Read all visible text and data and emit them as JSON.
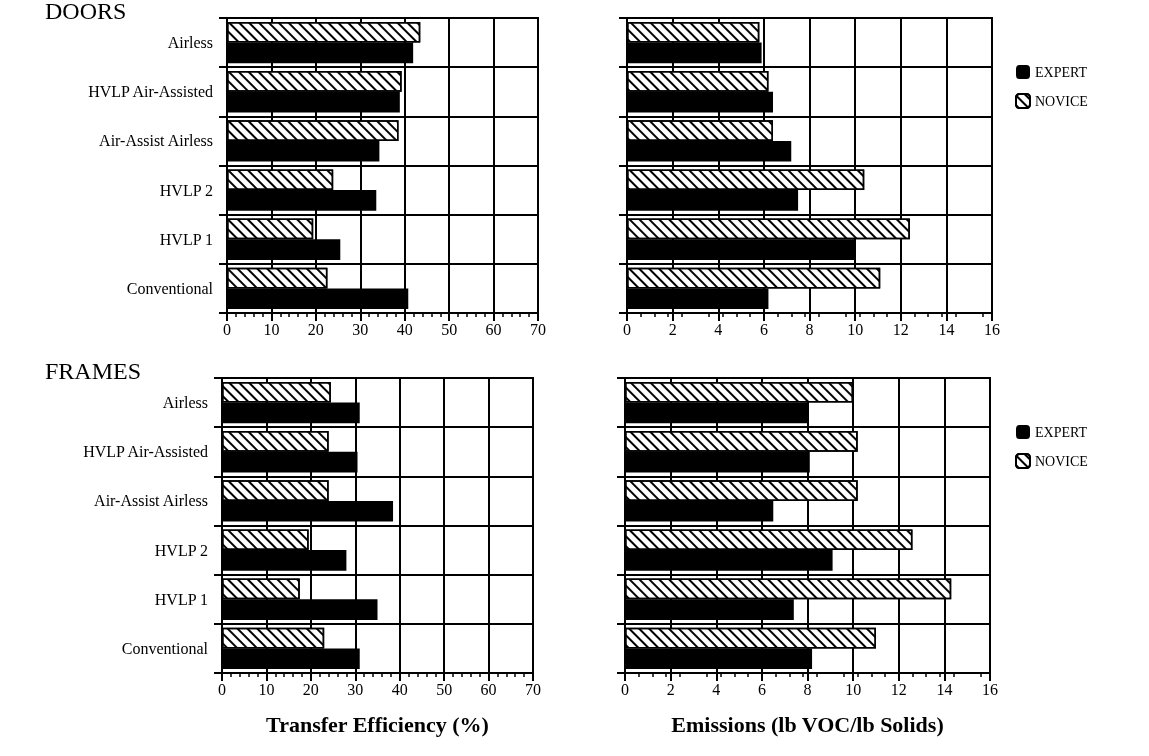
{
  "chart_data": [
    {
      "type": "bar",
      "orientation": "horizontal",
      "title": "DOORS",
      "categories": [
        "Airless",
        "HVLP Air-Assisted",
        "Air-Assist Airless",
        "HVLP 2",
        "HVLP 1",
        "Conventional"
      ],
      "series": [
        {
          "color": "#ffffff",
          "values": [
            43.5,
            39.3,
            38.6,
            23.9,
            19.4,
            22.6
          ]
        },
        {
          "color": "#000000",
          "values": [
            41.9,
            38.9,
            34.3,
            33.6,
            25.5,
            40.8
          ]
        }
      ],
      "xlim": [
        0,
        70
      ],
      "xticks": [
        0,
        10,
        20,
        30,
        40,
        50,
        60,
        70
      ],
      "grid": true,
      "legend": false
    },
    {
      "type": "bar",
      "orientation": "horizontal",
      "categories": [
        null,
        null,
        null,
        null,
        null,
        null
      ],
      "series": [
        {
          "name": "NOVICE",
          "color": "#ffffff",
          "values": [
            5.8,
            6.2,
            6.4,
            10.4,
            12.4,
            11.1
          ]
        },
        {
          "name": "EXPERT",
          "color": "#000000",
          "values": [
            5.9,
            6.4,
            7.2,
            7.5,
            10,
            6.2
          ]
        }
      ],
      "xlim": [
        0,
        16
      ],
      "xticks": [
        0,
        2,
        4,
        6,
        8,
        10,
        12,
        14,
        16
      ],
      "grid": true,
      "legend": "right"
    },
    {
      "type": "bar",
      "orientation": "horizontal",
      "title": "FRAMES",
      "xlabel": "Transfer Efficiency (%)",
      "categories": [
        "Airless",
        "HVLP Air-Assisted",
        "Air-Assist Airless",
        "HVLP 2",
        "HVLP 1",
        "Conventional"
      ],
      "series": [
        {
          "color": "#ffffff",
          "values": [
            24.5,
            24,
            24,
            19.5,
            17.5,
            23
          ]
        },
        {
          "color": "#000000",
          "values": [
            31,
            30.5,
            38.5,
            28,
            35,
            31
          ]
        }
      ],
      "xlim": [
        0,
        70
      ],
      "xticks": [
        0,
        10,
        20,
        30,
        40,
        50,
        60,
        70
      ],
      "grid": true,
      "legend": false
    },
    {
      "type": "bar",
      "orientation": "horizontal",
      "xlabel": "Emissions (lb VOC/lb Solids)",
      "categories": [
        null,
        null,
        null,
        null,
        null,
        null
      ],
      "series": [
        {
          "name": "NOVICE",
          "color": "#ffffff",
          "values": [
            10,
            10.2,
            10.2,
            12.6,
            14.3,
            11
          ]
        },
        {
          "name": "EXPERT",
          "color": "#000000",
          "values": [
            8,
            8.1,
            6.5,
            9.1,
            7.4,
            8.2
          ]
        }
      ],
      "xlim": [
        0,
        16
      ],
      "xticks": [
        0,
        2,
        4,
        6,
        8,
        10,
        12,
        14,
        16
      ],
      "grid": true,
      "legend": "right"
    }
  ]
}
